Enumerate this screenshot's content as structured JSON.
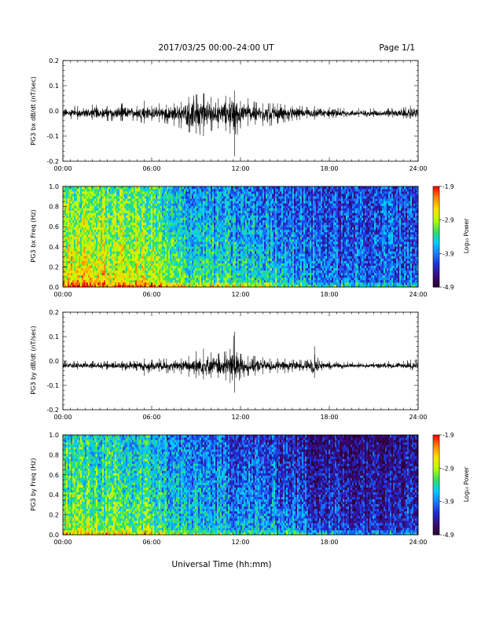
{
  "header": {
    "title": "2017/03/25  00:00–24:00 UT",
    "page": "Page 1/1"
  },
  "footer": {
    "xlabel": "Universal Time (hh:mm)"
  },
  "colors": {
    "trace": "#000000",
    "colormap": [
      "#2b0033",
      "#3a0a78",
      "#1f2bd6",
      "#1c7bff",
      "#00d0ff",
      "#38e05a",
      "#b8ff00",
      "#ffe000",
      "#ff8800",
      "#ff0000"
    ]
  },
  "chart_data": [
    {
      "type": "line",
      "ylabel": "PG3 bx dB/dt (nT/sec)",
      "x_ticks": [
        "00:00",
        "06:00",
        "12:00",
        "18:00",
        "24:00"
      ],
      "x_range": [
        0,
        24
      ],
      "ylim": [
        -0.2,
        0.2
      ],
      "y_ticks": [
        "0.2",
        "0.1",
        "0.0",
        "-0.1",
        "-0.2"
      ],
      "grid": false,
      "series": [
        {
          "hours": [
            0,
            1,
            2,
            3,
            4,
            5,
            5.5,
            6,
            6.5,
            7,
            7.5,
            8,
            8.5,
            9,
            9.5,
            10,
            10.5,
            11,
            11.3,
            11.6,
            12,
            12.5,
            13,
            13.5,
            14,
            14.5,
            15,
            15.5,
            16,
            16.5,
            17,
            18,
            19,
            20,
            21,
            22,
            23,
            23.5,
            24
          ],
          "envelope_max": [
            0.02,
            0.02,
            0.025,
            0.02,
            0.03,
            0.02,
            0.04,
            0.02,
            0.03,
            0.025,
            0.03,
            0.035,
            0.055,
            0.065,
            0.07,
            0.055,
            0.05,
            0.06,
            0.055,
            0.08,
            0.04,
            0.05,
            0.035,
            0.03,
            0.03,
            0.03,
            0.025,
            0.02,
            0.02,
            0.015,
            0.02,
            0.015,
            0.01,
            0.01,
            0.01,
            0.01,
            0.015,
            0.02,
            0.03
          ],
          "envelope_min": [
            -0.03,
            -0.035,
            -0.035,
            -0.04,
            -0.04,
            -0.04,
            -0.05,
            -0.04,
            -0.045,
            -0.05,
            -0.06,
            -0.07,
            -0.085,
            -0.09,
            -0.1,
            -0.08,
            -0.07,
            -0.08,
            -0.09,
            -0.18,
            -0.07,
            -0.06,
            -0.055,
            -0.06,
            -0.06,
            -0.05,
            -0.045,
            -0.04,
            -0.035,
            -0.03,
            -0.035,
            -0.03,
            -0.025,
            -0.025,
            -0.025,
            -0.025,
            -0.03,
            -0.03,
            -0.04
          ],
          "baseline": -0.01
        }
      ]
    },
    {
      "type": "heatmap",
      "ylabel": "PG3 bx Freq (Hz)",
      "x_ticks": [
        "00:00",
        "06:00",
        "12:00",
        "18:00",
        "24:00"
      ],
      "x_range": [
        0,
        24
      ],
      "y_range": [
        0,
        1.0
      ],
      "y_ticks": [
        "1.0",
        "0.8",
        "0.6",
        "0.4",
        "0.2",
        "0.0"
      ],
      "colorbar": {
        "label": "Log₁₀ Power",
        "ticks": [
          "-1.9",
          "-2.9",
          "-3.9",
          "-4.9"
        ],
        "range": [
          -4.9,
          -1.9
        ]
      },
      "hours": [
        0,
        2,
        4,
        6,
        7.5,
        9,
        11,
        13,
        15,
        17,
        19,
        21,
        24
      ],
      "level_low_freq": [
        -2.4,
        -2.4,
        -2.5,
        -2.6,
        -3.0,
        -3.1,
        -3.2,
        -3.2,
        -3.4,
        -3.8,
        -3.9,
        -3.9,
        -3.9
      ],
      "level_high_freq": [
        -3.1,
        -3.2,
        -3.2,
        -3.3,
        -3.7,
        -3.8,
        -3.9,
        -4.0,
        -4.0,
        -4.1,
        -4.2,
        -4.1,
        -4.1
      ]
    },
    {
      "type": "line",
      "ylabel": "PG3 by dB/dt (nT/sec)",
      "x_ticks": [
        "00:00",
        "06:00",
        "12:00",
        "18:00",
        "24:00"
      ],
      "x_range": [
        0,
        24
      ],
      "ylim": [
        -0.2,
        0.2
      ],
      "y_ticks": [
        "0.2",
        "0.1",
        "0.0",
        "-0.1",
        "-0.2"
      ],
      "grid": false,
      "series": [
        {
          "hours": [
            0,
            1,
            2,
            3,
            4,
            5,
            5.5,
            6,
            6.5,
            7,
            7.5,
            8,
            8.5,
            9,
            9.5,
            10,
            10.5,
            11,
            11.3,
            11.6,
            12,
            12.5,
            13,
            13.5,
            14,
            14.5,
            15,
            15.5,
            16,
            16.5,
            17,
            17.5,
            18,
            19,
            20,
            21,
            22,
            23,
            23.5,
            24
          ],
          "envelope_max": [
            0.0,
            0.0,
            0.0,
            0.0,
            0.0,
            0.0,
            0.01,
            0.005,
            0.01,
            0.01,
            0.0,
            0.01,
            0.02,
            0.04,
            0.05,
            0.035,
            0.03,
            0.04,
            0.05,
            0.12,
            0.03,
            0.02,
            0.02,
            0.015,
            0.01,
            0.01,
            0.01,
            0.005,
            0.005,
            0.0,
            0.06,
            0.0,
            0.0,
            -0.005,
            -0.005,
            -0.005,
            0.0,
            0.0,
            0.005,
            0.01
          ],
          "envelope_min": [
            -0.03,
            -0.035,
            -0.03,
            -0.035,
            -0.04,
            -0.04,
            -0.06,
            -0.04,
            -0.045,
            -0.05,
            -0.05,
            -0.055,
            -0.065,
            -0.07,
            -0.075,
            -0.07,
            -0.07,
            -0.08,
            -0.09,
            -0.13,
            -0.07,
            -0.06,
            -0.06,
            -0.055,
            -0.05,
            -0.05,
            -0.05,
            -0.045,
            -0.04,
            -0.04,
            -0.07,
            -0.04,
            -0.035,
            -0.03,
            -0.03,
            -0.03,
            -0.03,
            -0.03,
            -0.035,
            -0.04
          ],
          "baseline": -0.02
        }
      ]
    },
    {
      "type": "heatmap",
      "ylabel": "PG3 by Freq (Hz)",
      "x_ticks": [
        "00:00",
        "06:00",
        "12:00",
        "18:00",
        "24:00"
      ],
      "x_range": [
        0,
        24
      ],
      "y_range": [
        0,
        1.0
      ],
      "y_ticks": [
        "1.0",
        "0.8",
        "0.6",
        "0.4",
        "0.2",
        "0.0"
      ],
      "colorbar": {
        "label": "Log₁₀ Power",
        "ticks": [
          "-1.9",
          "-2.9",
          "-3.9",
          "-4.9"
        ],
        "range": [
          -4.9,
          -1.9
        ]
      },
      "hours": [
        0,
        2,
        4,
        6,
        7.5,
        9,
        11,
        13,
        15,
        17,
        19,
        21,
        24
      ],
      "level_low_freq": [
        -2.8,
        -2.9,
        -3.0,
        -3.0,
        -3.3,
        -3.4,
        -3.5,
        -3.6,
        -3.6,
        -3.9,
        -4.1,
        -4.1,
        -4.0
      ],
      "level_high_freq": [
        -3.4,
        -3.5,
        -3.6,
        -3.6,
        -3.9,
        -4.0,
        -4.1,
        -4.2,
        -4.3,
        -4.5,
        -4.6,
        -4.5,
        -4.4
      ]
    }
  ]
}
